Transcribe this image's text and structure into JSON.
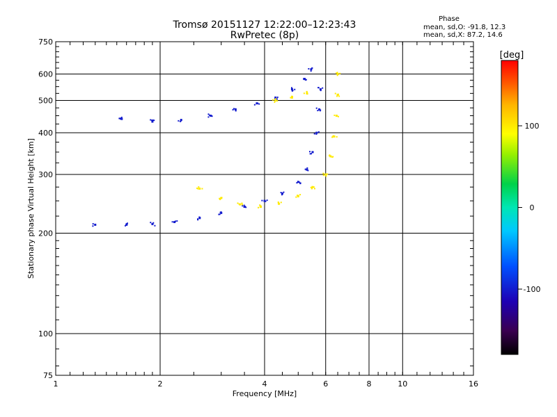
{
  "chart_data": {
    "type": "scatter",
    "title": "Tromsø 20151127 12:22:00–12:23:43",
    "subtitle": "RwPretec (8p)",
    "xlabel": "Frequency [MHz]",
    "ylabel": "Stationary phase Virtual Height [km]",
    "x_scale": "log",
    "y_scale": "log",
    "xlim": [
      1,
      16
    ],
    "ylim": [
      75,
      750
    ],
    "x_ticks": [
      1,
      2,
      4,
      6,
      8,
      10,
      16
    ],
    "x_tick_labels": [
      "1",
      "2",
      "4",
      "6",
      "8",
      "10",
      "16"
    ],
    "y_ticks": [
      75,
      100,
      200,
      300,
      400,
      500,
      600,
      750
    ],
    "y_tick_labels": [
      "75",
      "100",
      "200",
      "300",
      "400",
      "500",
      "600",
      "750"
    ],
    "grid": true,
    "info": {
      "heading": "Phase",
      "line_o": "mean, sd,O: -91.8, 12.3",
      "line_x": "mean, sd,X:  87.2, 14.6"
    },
    "colorbar": {
      "label": "[deg]",
      "range": [
        -180,
        180
      ],
      "ticks": [
        100,
        0,
        -100
      ],
      "tick_labels": [
        "100",
        "0",
        "-100"
      ],
      "colormap": "rainbow"
    },
    "series": [
      {
        "role": "O-mode trace",
        "phase_deg": -100,
        "points": [
          [
            1.3,
            212
          ],
          [
            1.6,
            212
          ],
          [
            1.9,
            213
          ],
          [
            2.2,
            216
          ],
          [
            2.6,
            222
          ],
          [
            3.0,
            230
          ],
          [
            3.5,
            240
          ],
          [
            4.0,
            250
          ],
          [
            4.5,
            263
          ],
          [
            5.0,
            285
          ],
          [
            5.3,
            310
          ],
          [
            5.5,
            350
          ],
          [
            5.65,
            400
          ],
          [
            5.75,
            470
          ],
          [
            5.8,
            540
          ],
          [
            1.55,
            440
          ],
          [
            1.9,
            432
          ],
          [
            2.3,
            437
          ],
          [
            2.8,
            450
          ],
          [
            3.3,
            470
          ],
          [
            3.8,
            490
          ],
          [
            4.3,
            510
          ],
          [
            4.8,
            540
          ],
          [
            5.2,
            580
          ],
          [
            5.45,
            620
          ]
        ]
      },
      {
        "role": "X-mode trace",
        "phase_deg": 100,
        "points": [
          [
            2.6,
            272
          ],
          [
            3.0,
            255
          ],
          [
            3.4,
            244
          ],
          [
            3.9,
            240
          ],
          [
            4.4,
            245
          ],
          [
            5.0,
            258
          ],
          [
            5.5,
            275
          ],
          [
            6.0,
            300
          ],
          [
            6.2,
            340
          ],
          [
            6.35,
            390
          ],
          [
            6.45,
            450
          ],
          [
            6.5,
            520
          ],
          [
            6.5,
            600
          ],
          [
            4.3,
            500
          ],
          [
            4.8,
            510
          ],
          [
            5.3,
            525
          ]
        ]
      }
    ]
  }
}
